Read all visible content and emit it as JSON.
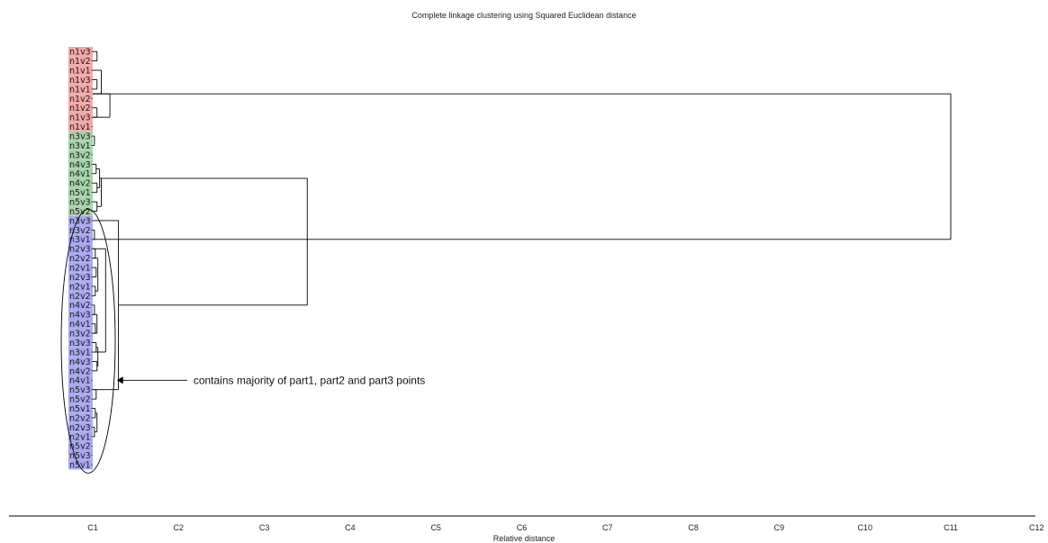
{
  "chart_data": {
    "type": "dendrogram",
    "title": "Complete linkage clustering using Squared Euclidean distance",
    "xlabel": "Relative distance",
    "x_ticks": [
      "C1",
      "C2",
      "C3",
      "C4",
      "C5",
      "C6",
      "C7",
      "C8",
      "C9",
      "C10",
      "C11",
      "C12"
    ],
    "xlim": [
      0.05,
      12
    ],
    "groups": [
      {
        "color": "#f4a9a6",
        "leaves": [
          "n1v3",
          "n1v2",
          "n1v1",
          "n1v3",
          "n1v1",
          "n1v2",
          "n1v2",
          "n1v3",
          "n1v1"
        ]
      },
      {
        "color": "#a8d4a8",
        "leaves": [
          "n3v3",
          "n3v1",
          "n3v2",
          "n4v3",
          "n4v1",
          "n4v2",
          "n5v1",
          "n5v3",
          "n5v2"
        ]
      },
      {
        "color": "#a9a9f2",
        "leaves": [
          "n3v3",
          "n3v2",
          "n3v1",
          "n2v3",
          "n2v2",
          "n2v1",
          "n2v3",
          "n2v1",
          "n2v2",
          "n4v2",
          "n4v3",
          "n4v1",
          "n3v2",
          "n3v3",
          "n3v1",
          "n4v3",
          "n4v2",
          "n4v1",
          "n5v3",
          "n5v2",
          "n5v1",
          "n2v2",
          "n2v3",
          "n2v1",
          "n5v2",
          "n5v3",
          "n5v1"
        ]
      }
    ],
    "merges": [
      {
        "a": [
          1,
          2
        ],
        "h": 1.05
      },
      {
        "a": [
          4,
          5
        ],
        "h": 1.05
      },
      {
        "a": [
          7,
          8
        ],
        "h": 1.05
      },
      {
        "a": [
          3,
          5.5
        ],
        "h": 1.1
      },
      {
        "a": [
          5.5,
          8
        ],
        "h": 1.2
      },
      {
        "a": [
          10,
          11
        ],
        "h": 1.02
      },
      {
        "a": [
          13,
          14
        ],
        "h": 1.04
      },
      {
        "a": [
          15,
          16
        ],
        "h": 1.05
      },
      {
        "a": [
          13.5,
          15.5
        ],
        "h": 1.08
      },
      {
        "a": [
          17,
          18
        ],
        "h": 1.05
      },
      {
        "a": [
          14.5,
          17.5
        ],
        "h": 1.1
      },
      {
        "a": [
          20,
          21
        ],
        "h": 1.02
      },
      {
        "a": [
          22,
          23
        ],
        "h": 1.03
      },
      {
        "a": [
          24,
          25
        ],
        "h": 1.04
      },
      {
        "a": [
          26,
          27
        ],
        "h": 1.03
      },
      {
        "a": [
          23,
          26.5
        ],
        "h": 1.06
      },
      {
        "a": [
          28,
          29
        ],
        "h": 1.02
      },
      {
        "a": [
          30,
          31
        ],
        "h": 1.03
      },
      {
        "a": [
          29,
          31
        ],
        "h": 1.05
      },
      {
        "a": [
          32,
          33
        ],
        "h": 1.04
      },
      {
        "a": [
          34,
          35
        ],
        "h": 1.05
      },
      {
        "a": [
          32.5,
          34.5
        ],
        "h": 1.06
      },
      {
        "a": [
          37,
          38
        ],
        "h": 1.04
      },
      {
        "a": [
          39,
          40
        ],
        "h": 1.03
      },
      {
        "a": [
          41,
          42
        ],
        "h": 1.02
      },
      {
        "a": [
          39.5,
          41.5
        ],
        "h": 1.05
      },
      {
        "a": [
          22,
          33
        ],
        "h": 1.15
      },
      {
        "a": [
          19,
          37
        ],
        "h": 1.3
      },
      {
        "a": [
          14.5,
          28
        ],
        "h": 3.5
      },
      {
        "a": [
          5.5,
          21
        ],
        "h": 11.0
      }
    ],
    "annotation": {
      "text": "contains majority of part1, part2 and part3 points",
      "arrow_tip_x": 1.28,
      "arrow_tail_x": 2.1,
      "arrow_row": 36
    }
  }
}
